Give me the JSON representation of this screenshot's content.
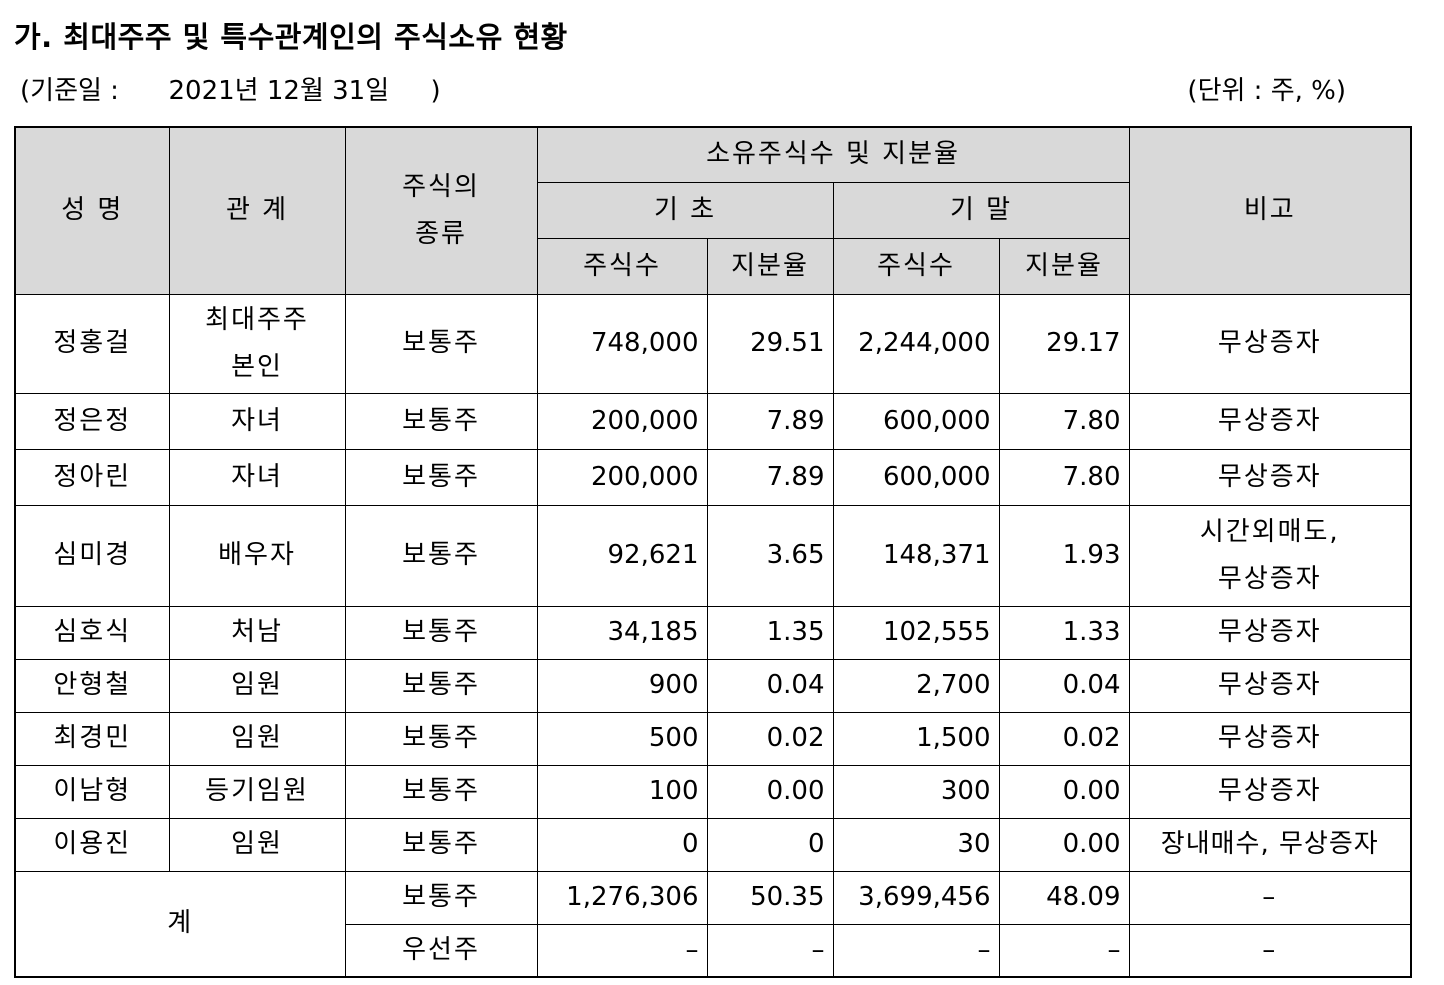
{
  "document": {
    "title": "가. 최대주주 및 특수관계인의 주식소유 현황",
    "base_date_line": "(기준일 :      2021년 12월 31일     )",
    "unit_line": "(단위 : 주, %)"
  },
  "table": {
    "headers": {
      "name": "성 명",
      "relation": "관 계",
      "stock_type": [
        "주식의",
        "종류"
      ],
      "ownership_group": "소유주식수 및 지분율",
      "period_start": "기 초",
      "period_end": "기 말",
      "shares": "주식수",
      "ratio": "지분율",
      "note": "비고"
    },
    "rows": [
      {
        "name": "정홍걸",
        "relation": [
          "최대주주",
          "본인"
        ],
        "type": "보통주",
        "start_shares": "748,000",
        "start_ratio": "29.51",
        "end_shares": "2,244,000",
        "end_ratio": "29.17",
        "note": [
          "무상증자"
        ]
      },
      {
        "name": "정은정",
        "relation": [
          "자녀"
        ],
        "type": "보통주",
        "start_shares": "200,000",
        "start_ratio": "7.89",
        "end_shares": "600,000",
        "end_ratio": "7.80",
        "note": [
          "무상증자"
        ]
      },
      {
        "name": "정아린",
        "relation": [
          "자녀"
        ],
        "type": "보통주",
        "start_shares": "200,000",
        "start_ratio": "7.89",
        "end_shares": "600,000",
        "end_ratio": "7.80",
        "note": [
          "무상증자"
        ]
      },
      {
        "name": "심미경",
        "relation": [
          "배우자"
        ],
        "type": "보통주",
        "start_shares": "92,621",
        "start_ratio": "3.65",
        "end_shares": "148,371",
        "end_ratio": "1.93",
        "note": [
          "시간외매도,",
          "무상증자"
        ]
      },
      {
        "name": "심호식",
        "relation": [
          "처남"
        ],
        "type": "보통주",
        "start_shares": "34,185",
        "start_ratio": "1.35",
        "end_shares": "102,555",
        "end_ratio": "1.33",
        "note": [
          "무상증자"
        ]
      },
      {
        "name": "안형철",
        "relation": [
          "임원"
        ],
        "type": "보통주",
        "start_shares": "900",
        "start_ratio": "0.04",
        "end_shares": "2,700",
        "end_ratio": "0.04",
        "note": [
          "무상증자"
        ]
      },
      {
        "name": "최경민",
        "relation": [
          "임원"
        ],
        "type": "보통주",
        "start_shares": "500",
        "start_ratio": "0.02",
        "end_shares": "1,500",
        "end_ratio": "0.02",
        "note": [
          "무상증자"
        ]
      },
      {
        "name": "이남형",
        "relation": [
          "등기임원"
        ],
        "type": "보통주",
        "start_shares": "100",
        "start_ratio": "0.00",
        "end_shares": "300",
        "end_ratio": "0.00",
        "note": [
          "무상증자"
        ]
      },
      {
        "name": "이용진",
        "relation": [
          "임원"
        ],
        "type": "보통주",
        "start_shares": "0",
        "start_ratio": "0",
        "end_shares": "30",
        "end_ratio": "0.00",
        "note": [
          "장내매수, 무상증자"
        ]
      }
    ],
    "total": {
      "label": "계",
      "rows": [
        {
          "type": "보통주",
          "start_shares": "1,276,306",
          "start_ratio": "50.35",
          "end_shares": "3,699,456",
          "end_ratio": "48.09",
          "note": "–"
        },
        {
          "type": "우선주",
          "start_shares": "–",
          "start_ratio": "–",
          "end_shares": "–",
          "end_ratio": "–",
          "note": "–"
        }
      ]
    }
  }
}
